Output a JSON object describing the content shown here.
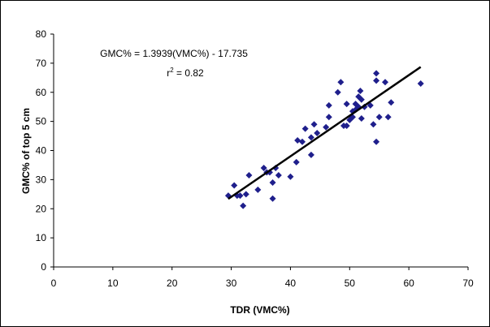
{
  "chart_data": {
    "type": "scatter",
    "xlabel": "TDR (VMC%)",
    "ylabel": "GMC% of top 5 cm",
    "xlim": [
      0,
      70
    ],
    "ylim": [
      0,
      80
    ],
    "xticks": [
      0,
      10,
      20,
      30,
      40,
      50,
      60,
      70
    ],
    "yticks": [
      0,
      10,
      20,
      30,
      40,
      50,
      60,
      70,
      80
    ],
    "grid": false,
    "legend": "none",
    "marker_color": "#1f1f8c",
    "trendline": {
      "equation": "GMC% = 1.3939(VMC%) - 17.735",
      "r2_prefix": "r",
      "r2_sup": "2",
      "r2_suffix": " = 0.82",
      "slope": 1.3939,
      "intercept": -17.735,
      "x_range": [
        29.5,
        62
      ]
    },
    "points": [
      [
        29.5,
        24.5
      ],
      [
        30.5,
        28
      ],
      [
        31,
        24.5
      ],
      [
        31.5,
        24.5
      ],
      [
        32,
        21
      ],
      [
        32.5,
        25
      ],
      [
        33,
        31.5
      ],
      [
        34.5,
        26.5
      ],
      [
        35.5,
        34
      ],
      [
        36,
        32.5
      ],
      [
        36.5,
        32.5
      ],
      [
        37,
        23.5
      ],
      [
        37,
        29
      ],
      [
        37.5,
        34
      ],
      [
        38,
        31.5
      ],
      [
        40,
        31
      ],
      [
        41,
        36
      ],
      [
        41.2,
        43.5
      ],
      [
        42,
        43
      ],
      [
        42.5,
        47.5
      ],
      [
        43.5,
        38.5
      ],
      [
        43.5,
        44.5
      ],
      [
        44,
        49
      ],
      [
        44.5,
        46
      ],
      [
        46,
        48
      ],
      [
        46.5,
        51.5
      ],
      [
        46.5,
        55.5
      ],
      [
        48,
        60
      ],
      [
        48.5,
        63.5
      ],
      [
        49,
        48.5
      ],
      [
        49.5,
        56
      ],
      [
        49.5,
        48.5
      ],
      [
        50,
        50.5
      ],
      [
        50.5,
        51.5
      ],
      [
        50.5,
        53.5
      ],
      [
        51,
        54
      ],
      [
        51,
        56
      ],
      [
        51.5,
        55
      ],
      [
        51.5,
        58.5
      ],
      [
        51.8,
        60.5
      ],
      [
        52,
        57.5
      ],
      [
        52,
        51
      ],
      [
        52.5,
        55
      ],
      [
        53.5,
        55.5
      ],
      [
        54,
        49
      ],
      [
        54.5,
        66.5
      ],
      [
        54.5,
        64
      ],
      [
        54.5,
        43
      ],
      [
        55,
        51.5
      ],
      [
        56,
        63.5
      ],
      [
        56.5,
        51.5
      ],
      [
        57,
        56.5
      ],
      [
        62,
        63
      ]
    ]
  }
}
